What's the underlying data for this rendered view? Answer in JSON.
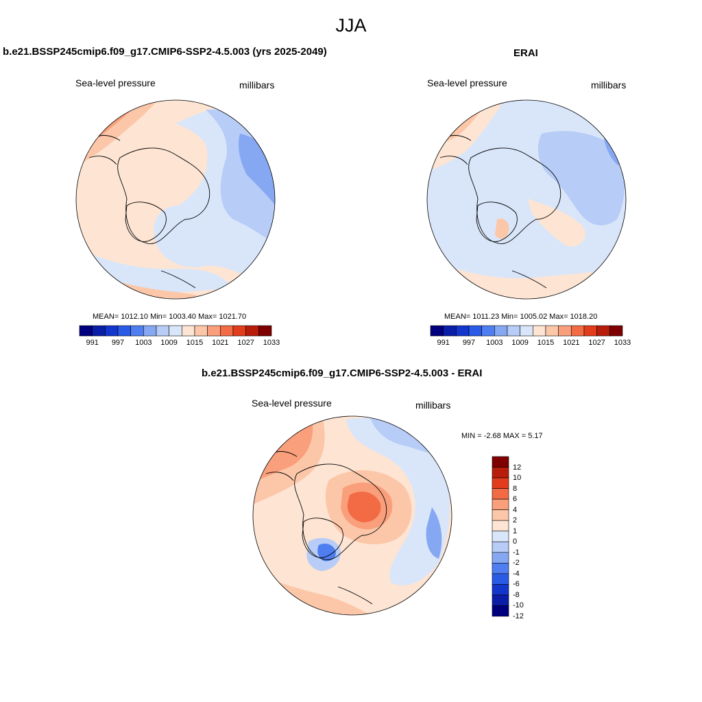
{
  "suptitle": "JJA",
  "panels": [
    {
      "title": "b.e21.BSSP245cmip6.f09_g17.CMIP6-SSP2-4.5.003 (yrs 2025-2049)",
      "left_label": "Sea-level pressure",
      "right_label": "millibars",
      "stats": "MEAN= 1012.10  Min= 1003.40  Max= 1021.70"
    },
    {
      "title": "ERAI",
      "left_label": "Sea-level pressure",
      "right_label": "millibars",
      "stats": "MEAN= 1011.23  Min= 1005.02  Max= 1018.20"
    },
    {
      "title": "b.e21.BSSP245cmip6.f09_g17.CMIP6-SSP2-4.5.003 - ERAI",
      "left_label": "Sea-level pressure",
      "right_label": "millibars",
      "stats": "MIN =  -2.68 MAX =   5.17"
    }
  ],
  "colors": [
    "#00007f",
    "#0a1ea8",
    "#1337cc",
    "#2a5be6",
    "#4f7ef0",
    "#86a8f2",
    "#b7ccf6",
    "#d9e6fa",
    "#fde4d3",
    "#fcc7a8",
    "#f99f7c",
    "#f26b45",
    "#e23c1c",
    "#b81d0b",
    "#7f0000"
  ],
  "abs_colorbar_ticks": [
    "991",
    "997",
    "1003",
    "1009",
    "1015",
    "1021",
    "1027",
    "1033"
  ],
  "diff_colorbar_ticks": [
    "12",
    "10",
    "8",
    "6",
    "4",
    "2",
    "1",
    "0",
    "-1",
    "-2",
    "-4",
    "-6",
    "-8",
    "-10",
    "-12"
  ],
  "chart_data": [
    {
      "type": "heatmap",
      "title": "b.e21.BSSP245cmip6.f09_g17.CMIP6-SSP2-4.5.003 (yrs 2025-2049)",
      "variable": "Sea-level pressure",
      "units": "millibars",
      "projection": "north polar stereographic",
      "stats": {
        "mean": 1012.1,
        "min": 1003.4,
        "max": 1021.7
      },
      "levels": [
        991,
        994,
        997,
        1000,
        1003,
        1006,
        1009,
        1012,
        1015,
        1018,
        1021,
        1024,
        1027,
        1030,
        1033
      ]
    },
    {
      "type": "heatmap",
      "title": "ERAI",
      "variable": "Sea-level pressure",
      "units": "millibars",
      "projection": "north polar stereographic",
      "stats": {
        "mean": 1011.23,
        "min": 1005.02,
        "max": 1018.2
      },
      "levels": [
        991,
        994,
        997,
        1000,
        1003,
        1006,
        1009,
        1012,
        1015,
        1018,
        1021,
        1024,
        1027,
        1030,
        1033
      ]
    },
    {
      "type": "heatmap",
      "title": "b.e21.BSSP245cmip6.f09_g17.CMIP6-SSP2-4.5.003 - ERAI",
      "variable": "Sea-level pressure",
      "units": "millibars",
      "projection": "north polar stereographic",
      "stats": {
        "min": -2.68,
        "max": 5.17
      },
      "levels": [
        -12,
        -10,
        -8,
        -6,
        -4,
        -2,
        -1,
        0,
        1,
        2,
        4,
        6,
        8,
        10,
        12
      ]
    }
  ]
}
